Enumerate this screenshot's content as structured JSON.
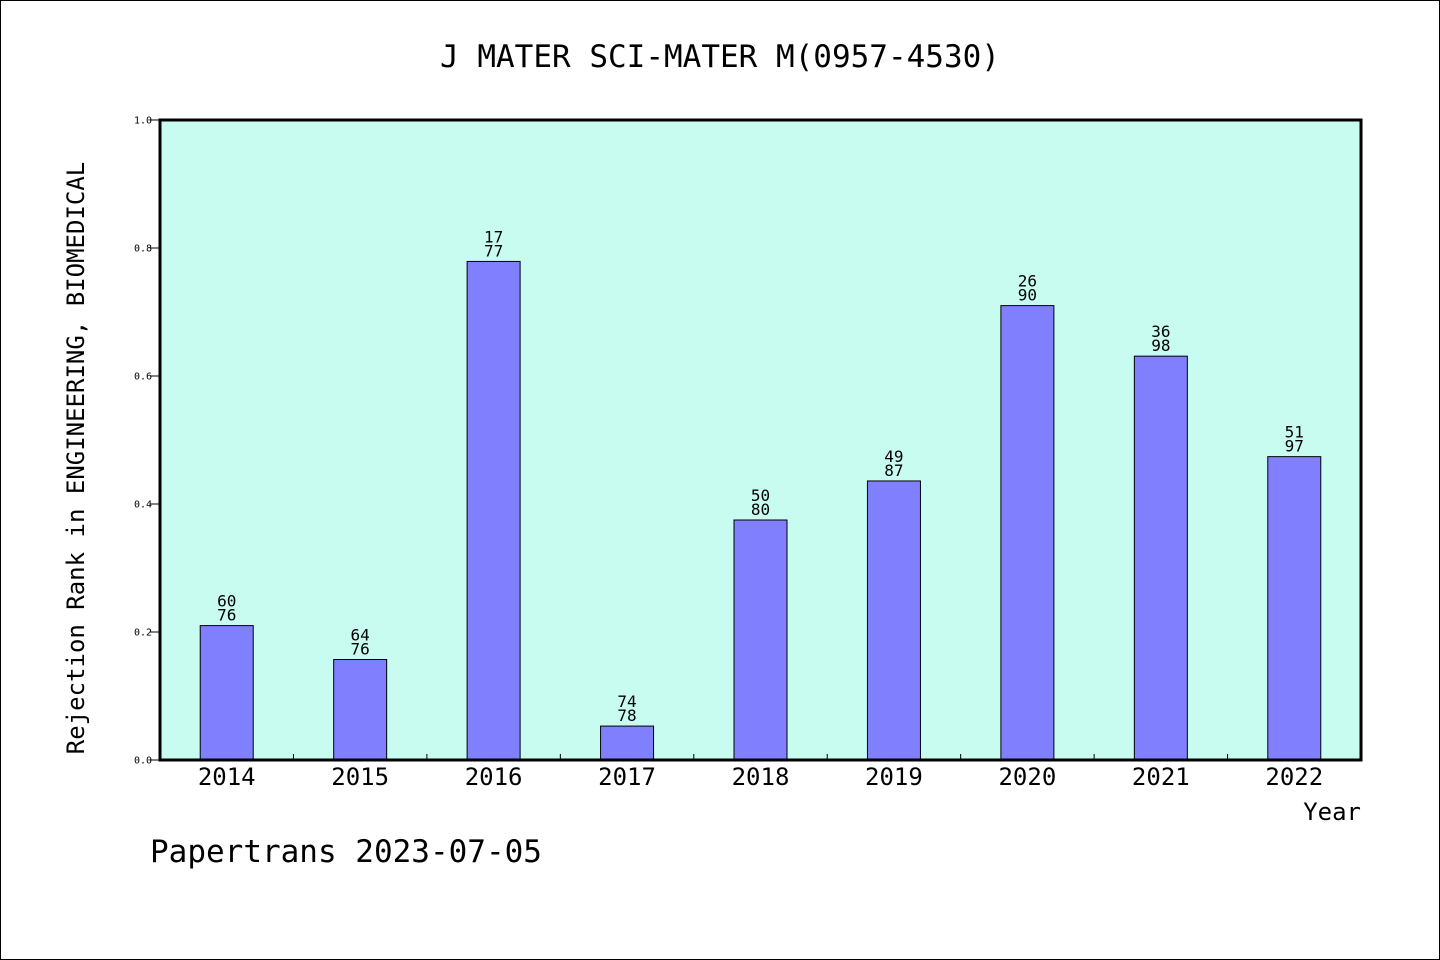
{
  "chart_data": {
    "type": "bar",
    "title": "J MATER SCI-MATER M(0957-4530)",
    "xlabel": "Year",
    "ylabel": "Rejection Rank in ENGINEERING, BIOMEDICAL",
    "categories": [
      "2014",
      "2015",
      "2016",
      "2017",
      "2018",
      "2019",
      "2020",
      "2021",
      "2022"
    ],
    "values": [
      0.21,
      0.157,
      0.779,
      0.053,
      0.375,
      0.436,
      0.71,
      0.631,
      0.474
    ],
    "labels_top": [
      "60",
      "64",
      "17",
      "74",
      "50",
      "49",
      "26",
      "36",
      "51"
    ],
    "labels_bottom": [
      "76",
      "76",
      "77",
      "78",
      "80",
      "87",
      "90",
      "98",
      "97"
    ],
    "ylim": [
      0,
      1.0
    ],
    "yticks": [
      "0.0",
      "0.2",
      "0.4",
      "0.6",
      "0.8",
      "1.0"
    ],
    "grid": false,
    "colors": {
      "bar": "#8080ff",
      "plot_background": "#c8fcf0",
      "axes": "#000000"
    }
  },
  "footer": {
    "text": "Papertrans 2023-07-05"
  }
}
